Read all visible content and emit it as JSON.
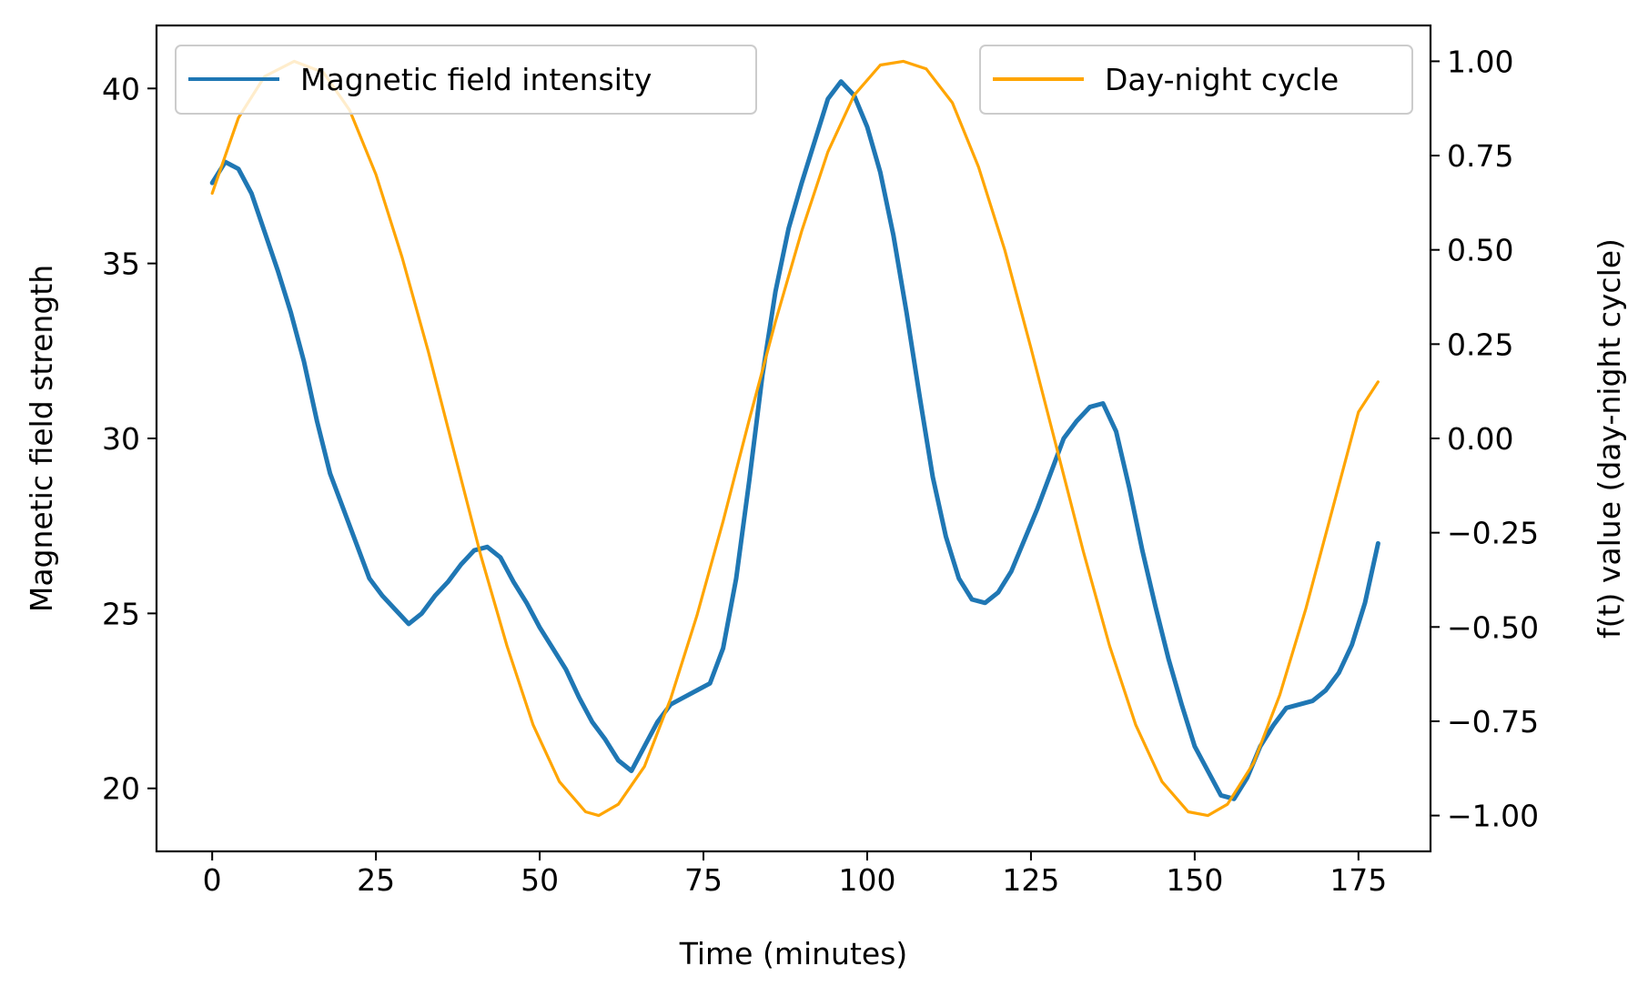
{
  "chart_data": {
    "type": "line",
    "title": "",
    "xlabel": "Time (minutes)",
    "ylabel_left": "Magnetic field strength",
    "ylabel_right": "f(t) value (day-night cycle)",
    "xlim": [
      -8.5,
      186
    ],
    "ylim_left": [
      18.2,
      41.8
    ],
    "ylim_right": [
      -1.095,
      1.095
    ],
    "x_ticks": [
      0,
      25,
      50,
      75,
      100,
      125,
      150,
      175
    ],
    "x_tick_labels": [
      "0",
      "25",
      "50",
      "75",
      "100",
      "125",
      "150",
      "175"
    ],
    "y_left_ticks": [
      20,
      25,
      30,
      35,
      40
    ],
    "y_left_tick_labels": [
      "20",
      "25",
      "30",
      "35",
      "40"
    ],
    "y_right_ticks": [
      1.0,
      0.75,
      0.5,
      0.25,
      0.0,
      -0.25,
      -0.5,
      -0.75,
      -1.0
    ],
    "y_right_tick_labels": [
      "1.00",
      "0.75",
      "0.50",
      "0.25",
      "0.00",
      "−0.25",
      "−0.50",
      "−0.75",
      "−1.00"
    ],
    "grid": false,
    "series": [
      {
        "name": "Magnetic field intensity",
        "axis": "left",
        "color": "#1f77b4",
        "x": [
          0,
          2,
          4,
          6,
          8,
          10,
          12,
          14,
          16,
          18,
          20,
          22,
          24,
          26,
          28,
          30,
          32,
          34,
          36,
          38,
          40,
          42,
          44,
          46,
          48,
          50,
          52,
          54,
          56,
          58,
          60,
          62,
          64,
          66,
          68,
          70,
          72,
          74,
          76,
          78,
          80,
          82,
          84,
          86,
          88,
          90,
          92,
          94,
          96,
          98,
          100,
          102,
          104,
          106,
          108,
          110,
          112,
          114,
          116,
          118,
          120,
          122,
          124,
          126,
          128,
          130,
          132,
          134,
          136,
          138,
          140,
          142,
          144,
          146,
          148,
          150,
          152,
          154,
          156,
          158,
          160,
          162,
          164,
          166,
          168,
          170,
          172,
          174,
          176,
          178
        ],
        "values": [
          37.3,
          37.9,
          37.7,
          37.0,
          35.9,
          34.8,
          33.6,
          32.2,
          30.5,
          29.0,
          28.0,
          27.0,
          26.0,
          25.5,
          25.1,
          24.7,
          25.0,
          25.5,
          25.9,
          26.4,
          26.8,
          26.9,
          26.6,
          25.9,
          25.3,
          24.6,
          24.0,
          23.4,
          22.6,
          21.9,
          21.4,
          20.8,
          20.5,
          21.2,
          21.9,
          22.4,
          22.6,
          22.8,
          23.0,
          24.0,
          26.0,
          28.8,
          31.8,
          34.2,
          36.0,
          37.3,
          38.5,
          39.7,
          40.2,
          39.8,
          38.9,
          37.6,
          35.8,
          33.6,
          31.2,
          28.9,
          27.2,
          26.0,
          25.4,
          25.3,
          25.6,
          26.2,
          27.1,
          28.0,
          29.0,
          30.0,
          30.5,
          30.9,
          31.0,
          30.2,
          28.6,
          26.8,
          25.2,
          23.7,
          22.4,
          21.2,
          20.5,
          19.8,
          19.7,
          20.3,
          21.2,
          21.8,
          22.3,
          22.4,
          22.5,
          22.8,
          23.3,
          24.1,
          25.3,
          27.0
        ]
      },
      {
        "name": "Day-night cycle",
        "axis": "right",
        "color": "#ffa500",
        "x": [
          0,
          4,
          8,
          12.5,
          17,
          21,
          25,
          29,
          33,
          37,
          41,
          45,
          49,
          53,
          57,
          59,
          62,
          66,
          70,
          74,
          78,
          82,
          86,
          90,
          94,
          98,
          102,
          105.5,
          109,
          113,
          117,
          121,
          125,
          129,
          133,
          137,
          141,
          145,
          149,
          152,
          155,
          159,
          163,
          167,
          171,
          175,
          178
        ],
        "values": [
          0.65,
          0.85,
          0.96,
          1.0,
          0.97,
          0.87,
          0.7,
          0.48,
          0.23,
          -0.04,
          -0.31,
          -0.55,
          -0.76,
          -0.91,
          -0.99,
          -1.0,
          -0.97,
          -0.87,
          -0.69,
          -0.47,
          -0.22,
          0.05,
          0.31,
          0.55,
          0.76,
          0.91,
          0.99,
          1.0,
          0.98,
          0.89,
          0.72,
          0.5,
          0.24,
          -0.03,
          -0.3,
          -0.55,
          -0.76,
          -0.91,
          -0.99,
          -1.0,
          -0.97,
          -0.86,
          -0.68,
          -0.45,
          -0.19,
          0.07,
          0.15
        ]
      }
    ],
    "legends": [
      {
        "placement": "upper-left",
        "entries": [
          "Magnetic field intensity"
        ]
      },
      {
        "placement": "upper-right",
        "entries": [
          "Day-night cycle"
        ]
      }
    ]
  }
}
